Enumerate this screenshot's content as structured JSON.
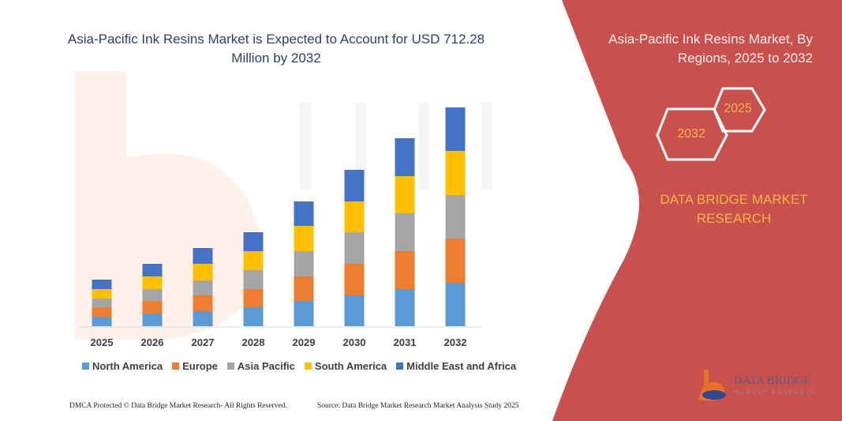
{
  "header": {
    "title": "Asia-Pacific Ink Resins Market is Expected to Account for USD 712.28 Million by 2032"
  },
  "side_panel": {
    "title": "Asia-Pacific Ink Resins Market, By Regions, 2025 to 2032",
    "hex_start": "2025",
    "hex_end": "2032",
    "brand": "DATA BRIDGE MARKET RESEARCH",
    "logo_text": "DATA BRIDGE",
    "logo_subtext": "MARKET RESEARCH",
    "background_color": "#c9504c",
    "accent_color": "#f7b24b"
  },
  "footer": {
    "left": "DMCA Protected © Data Bridge Market Research-  All Rights Reserved.",
    "right": "Source: Data Bridge Market Research  Market Analysis Study 2025"
  },
  "chart_data": {
    "type": "bar",
    "stacked": true,
    "title": "Asia-Pacific Ink Resins Market is Expected to Account for USD 712.28 Million by 2032",
    "xlabel": "",
    "ylabel": "",
    "y_axis_shown": false,
    "grid": false,
    "legend_position": "bottom",
    "categories": [
      "2025",
      "2026",
      "2027",
      "2028",
      "2029",
      "2030",
      "2031",
      "2032"
    ],
    "series": [
      {
        "name": "North America",
        "color": "#5b9bd5",
        "values": [
          12,
          16,
          19,
          24,
          32,
          39,
          47,
          55
        ]
      },
      {
        "name": "Europe",
        "color": "#ed7d31",
        "values": [
          12,
          16,
          20,
          23,
          31,
          40,
          48,
          56
        ]
      },
      {
        "name": "Asia Pacific",
        "color": "#a5a5a5",
        "values": [
          11,
          15,
          19,
          24,
          32,
          40,
          48,
          55
        ]
      },
      {
        "name": "South America",
        "color": "#ffc000",
        "values": [
          12,
          16,
          21,
          24,
          32,
          39,
          47,
          56
        ]
      },
      {
        "name": "Middle East and Africa",
        "color": "#4472c4",
        "values": [
          12,
          16,
          20,
          24,
          31,
          40,
          48,
          55
        ]
      }
    ]
  }
}
